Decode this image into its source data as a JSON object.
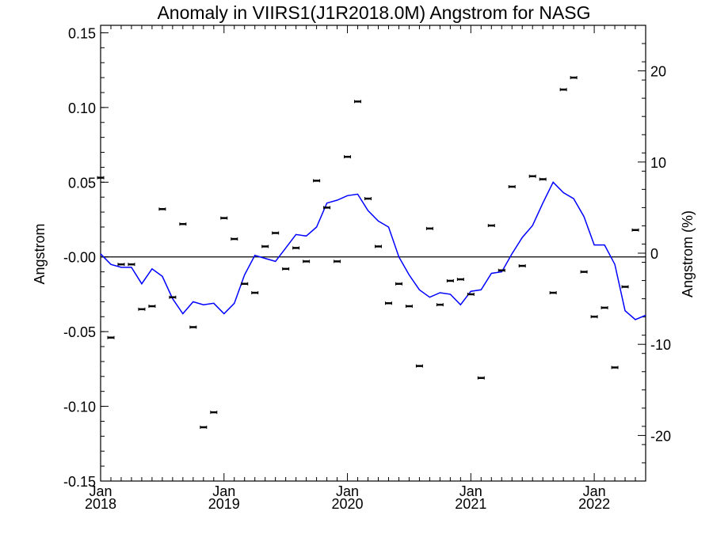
{
  "colors": {
    "axis": "#000000",
    "line": "#0000ff",
    "points": "#000000",
    "background": "#ffffff"
  },
  "chart_data": {
    "type": "line",
    "title": "Anomaly in VIIRS1(J1R2018.0M) Angstrom for NASG",
    "ylabel": "Angstrom",
    "y2label": "Angstrom (%)",
    "xlabel": "",
    "ylim": [
      -0.15,
      0.155
    ],
    "y2lim": [
      -25,
      25
    ],
    "xlim": [
      "2018-01",
      "2022-06"
    ],
    "grid": false,
    "legend": "none",
    "y_ticks": [
      "-0.15",
      "-0.10",
      "-0.05",
      "-0.00",
      "0.05",
      "0.10",
      "0.15"
    ],
    "y_tick_values": [
      -0.15,
      -0.1,
      -0.05,
      0.0,
      0.05,
      0.1,
      0.15
    ],
    "y2_ticks": [
      "-20",
      "-10",
      "0",
      "10",
      "20"
    ],
    "y2_tick_values": [
      -20,
      -10,
      0,
      10,
      20
    ],
    "x_ticks": [
      {
        "month": "Jan",
        "year": "2018",
        "date": "2018-01"
      },
      {
        "month": "Jan",
        "year": "2019",
        "date": "2019-01"
      },
      {
        "month": "Jan",
        "year": "2020",
        "date": "2020-01"
      },
      {
        "month": "Jan",
        "year": "2021",
        "date": "2021-01"
      },
      {
        "month": "Jan",
        "year": "2022",
        "date": "2022-01"
      }
    ],
    "reference_line": 0.0,
    "series": [
      {
        "kind": "monthly-anomaly-points-with-error-bars",
        "x": [
          "2018-01",
          "2018-02",
          "2018-03",
          "2018-04",
          "2018-05",
          "2018-06",
          "2018-07",
          "2018-08",
          "2018-09",
          "2018-10",
          "2018-11",
          "2018-12",
          "2019-01",
          "2019-02",
          "2019-03",
          "2019-04",
          "2019-05",
          "2019-06",
          "2019-07",
          "2019-08",
          "2019-09",
          "2019-10",
          "2019-11",
          "2019-12",
          "2020-01",
          "2020-02",
          "2020-03",
          "2020-04",
          "2020-05",
          "2020-06",
          "2020-07",
          "2020-08",
          "2020-09",
          "2020-10",
          "2020-11",
          "2020-12",
          "2021-01",
          "2021-02",
          "2021-03",
          "2021-04",
          "2021-05",
          "2021-06",
          "2021-07",
          "2021-08",
          "2021-09",
          "2021-10",
          "2021-11",
          "2021-12",
          "2022-01",
          "2022-02",
          "2022-03",
          "2022-04",
          "2022-05"
        ],
        "y": [
          0.053,
          -0.054,
          -0.005,
          -0.005,
          -0.035,
          -0.033,
          0.032,
          -0.027,
          0.022,
          -0.047,
          -0.114,
          -0.104,
          0.026,
          0.012,
          -0.018,
          -0.024,
          0.007,
          0.016,
          -0.008,
          0.006,
          -0.003,
          0.051,
          0.033,
          -0.003,
          0.067,
          0.104,
          0.039,
          0.007,
          -0.031,
          -0.018,
          -0.033,
          -0.073,
          0.019,
          -0.032,
          -0.016,
          -0.015,
          -0.025,
          -0.081,
          0.021,
          -0.009,
          0.047,
          -0.006,
          0.054,
          0.052,
          -0.024,
          0.112,
          0.12,
          -0.01,
          -0.04,
          -0.034,
          -0.074,
          -0.02,
          0.018
        ]
      },
      {
        "kind": "running-mean-line",
        "x": [
          "2018-01",
          "2018-02",
          "2018-03",
          "2018-04",
          "2018-05",
          "2018-06",
          "2018-07",
          "2018-08",
          "2018-09",
          "2018-10",
          "2018-11",
          "2018-12",
          "2019-01",
          "2019-02",
          "2019-03",
          "2019-04",
          "2019-05",
          "2019-06",
          "2019-07",
          "2019-08",
          "2019-09",
          "2019-10",
          "2019-11",
          "2019-12",
          "2020-01",
          "2020-02",
          "2020-03",
          "2020-04",
          "2020-05",
          "2020-06",
          "2020-07",
          "2020-08",
          "2020-09",
          "2020-10",
          "2020-11",
          "2020-12",
          "2021-01",
          "2021-02",
          "2021-03",
          "2021-04",
          "2021-05",
          "2021-06",
          "2021-07",
          "2021-08",
          "2021-09",
          "2021-10",
          "2021-11",
          "2021-12",
          "2022-01",
          "2022-02",
          "2022-03",
          "2022-04",
          "2022-05",
          "2022-06"
        ],
        "y": [
          0.002,
          -0.005,
          -0.007,
          -0.007,
          -0.018,
          -0.008,
          -0.013,
          -0.028,
          -0.038,
          -0.03,
          -0.032,
          -0.031,
          -0.038,
          -0.031,
          -0.012,
          0.001,
          -0.001,
          -0.003,
          0.006,
          0.015,
          0.014,
          0.02,
          0.036,
          0.038,
          0.041,
          0.042,
          0.031,
          0.024,
          0.02,
          0.0,
          -0.012,
          -0.022,
          -0.027,
          -0.024,
          -0.025,
          -0.032,
          -0.023,
          -0.022,
          -0.011,
          -0.01,
          0.002,
          0.013,
          0.021,
          0.036,
          0.05,
          0.043,
          0.039,
          0.027,
          0.008,
          0.008,
          -0.005,
          -0.036,
          -0.042,
          -0.039
        ]
      }
    ]
  }
}
